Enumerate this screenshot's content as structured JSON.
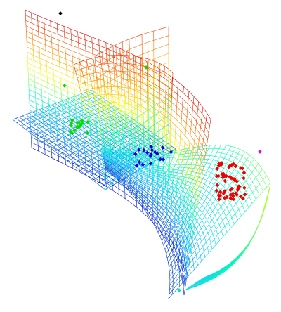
{
  "figure": {
    "background": "#ffffff",
    "colormap": [
      "#0000c8",
      "#00c8ff",
      "#00ffb0",
      "#ffff00",
      "#ff8000",
      "#dc0000"
    ],
    "surfaces": [
      {
        "name": "blue-flat-sheet",
        "rows": 22,
        "cols": 24
      },
      {
        "name": "tall-folded-sheet",
        "rows": 30,
        "cols": 26
      },
      {
        "name": "curved-s-sheet",
        "rows": 30,
        "cols": 28
      }
    ],
    "point_clouds": [
      {
        "name": "green-cluster",
        "color": "#00dd00",
        "count": 18
      },
      {
        "name": "blue-cluster",
        "color": "#0000dd",
        "count": 18
      },
      {
        "name": "red-cluster",
        "color": "#ee0000",
        "count": 55
      },
      {
        "name": "outlier-points",
        "colors": [
          "#000000",
          "#ee00ee",
          "#00dddd"
        ],
        "count": 5
      }
    ]
  }
}
